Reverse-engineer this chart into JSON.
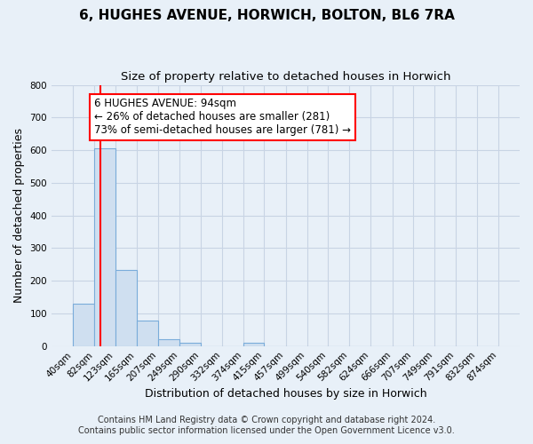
{
  "title": "6, HUGHES AVENUE, HORWICH, BOLTON, BL6 7RA",
  "subtitle": "Size of property relative to detached houses in Horwich",
  "xlabel": "Distribution of detached houses by size in Horwich",
  "ylabel": "Number of detached properties",
  "footer_line1": "Contains HM Land Registry data © Crown copyright and database right 2024.",
  "footer_line2": "Contains public sector information licensed under the Open Government Licence v3.0.",
  "bin_edges": [
    40,
    82,
    123,
    165,
    207,
    249,
    290,
    332,
    374,
    415,
    457,
    499,
    540,
    582,
    624,
    666,
    707,
    749,
    791,
    832,
    874
  ],
  "bin_labels": [
    "40sqm",
    "82sqm",
    "123sqm",
    "165sqm",
    "207sqm",
    "249sqm",
    "290sqm",
    "332sqm",
    "374sqm",
    "415sqm",
    "457sqm",
    "499sqm",
    "540sqm",
    "582sqm",
    "624sqm",
    "666sqm",
    "707sqm",
    "749sqm",
    "791sqm",
    "832sqm",
    "874sqm"
  ],
  "bar_heights": [
    130,
    605,
    232,
    78,
    22,
    10,
    0,
    0,
    10,
    0,
    0,
    0,
    0,
    0,
    0,
    0,
    0,
    0,
    0,
    0
  ],
  "bar_color": "#cfdff0",
  "bar_edge_color": "#7aacda",
  "property_line_x": 94,
  "property_line_color": "red",
  "annotation_text": "6 HUGHES AVENUE: 94sqm\n← 26% of detached houses are smaller (281)\n73% of semi-detached houses are larger (781) →",
  "annotation_box_color": "white",
  "annotation_box_edge": "red",
  "ylim": [
    0,
    800
  ],
  "yticks": [
    0,
    100,
    200,
    300,
    400,
    500,
    600,
    700,
    800
  ],
  "background_color": "#e8f0f8",
  "grid_color": "#c8d4e4",
  "title_fontsize": 11,
  "subtitle_fontsize": 9.5,
  "axis_label_fontsize": 9,
  "tick_fontsize": 7.5,
  "annotation_fontsize": 8.5,
  "footer_fontsize": 7
}
